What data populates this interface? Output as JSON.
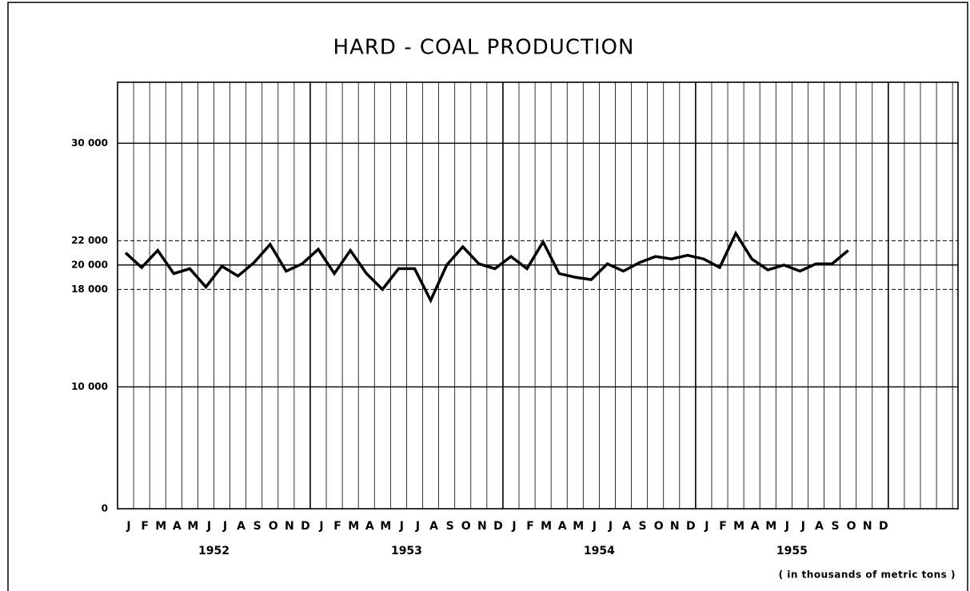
{
  "chart_data": {
    "type": "line",
    "title": "HARD - COAL PRODUCTION",
    "categories": [
      "J",
      "F",
      "M",
      "A",
      "M",
      "J",
      "J",
      "A",
      "S",
      "O",
      "N",
      "D",
      "J",
      "F",
      "M",
      "A",
      "M",
      "J",
      "J",
      "A",
      "S",
      "O",
      "N",
      "D",
      "J",
      "F",
      "M",
      "A",
      "M",
      "J",
      "J",
      "A",
      "S",
      "O",
      "N",
      "D",
      "J",
      "F",
      "M",
      "A",
      "M",
      "J",
      "J",
      "A",
      "S",
      "O",
      "N",
      "D"
    ],
    "year_labels": [
      "1952",
      "1953",
      "1954",
      "1955"
    ],
    "series": [
      {
        "name": "Hard-coal production",
        "color": "#000000",
        "values": [
          21000,
          19800,
          21200,
          19300,
          19700,
          18200,
          19900,
          19100,
          20200,
          21700,
          19500,
          20100,
          21300,
          19300,
          21200,
          19300,
          18000,
          19700,
          19700,
          17100,
          20000,
          21500,
          20100,
          19700,
          20700,
          19700,
          21900,
          19300,
          19000,
          18800,
          20100,
          19500,
          20200,
          20700,
          20500,
          20800,
          20500,
          19800,
          22600,
          20500,
          19600,
          20000,
          19500,
          20100,
          20100,
          21200,
          null,
          null
        ]
      }
    ],
    "ylim": [
      0,
      35000
    ],
    "yticks": [
      0,
      {
        "value": 10000,
        "label": "10 000"
      },
      {
        "value": 18000,
        "label": "18 000"
      },
      {
        "value": 20000,
        "label": "20 000"
      },
      {
        "value": 22000,
        "label": "22 000"
      },
      {
        "value": 30000,
        "label": "30 000"
      }
    ],
    "note": "( in thousands of metric tons )",
    "grid": true
  }
}
